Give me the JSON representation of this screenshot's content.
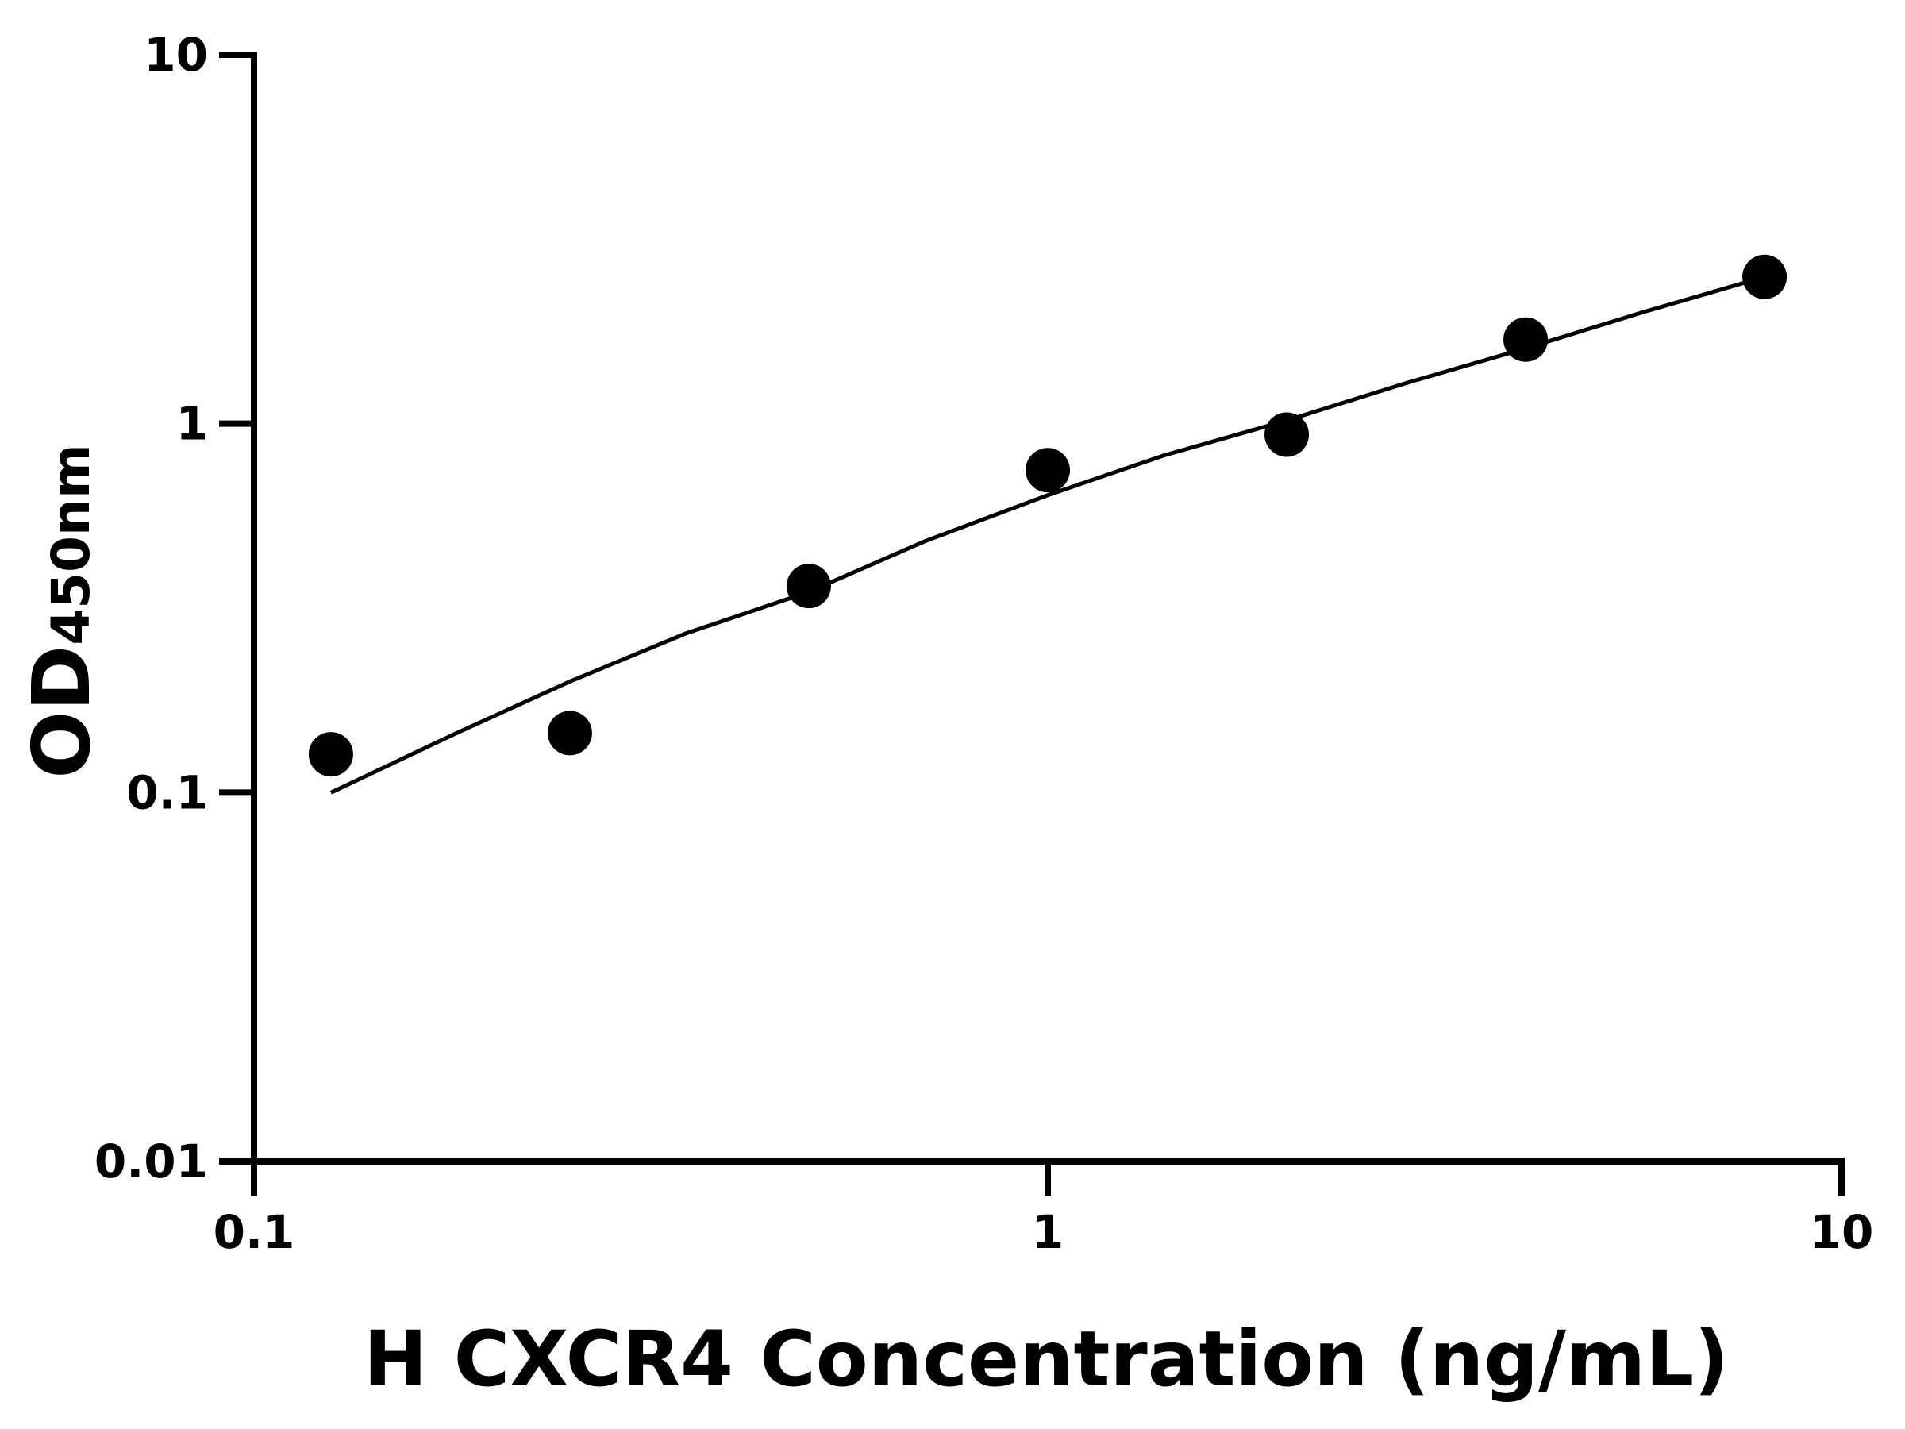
{
  "chart_data": {
    "type": "scatter",
    "title": "",
    "xlabel": "H CXCR4 Concentration (ng/mL)",
    "ylabel": {
      "main": "OD",
      "subscript": "450nm"
    },
    "x_scale": "log",
    "y_scale": "log",
    "xlim": [
      0.1,
      10
    ],
    "ylim": [
      0.01,
      10
    ],
    "x_ticks": [
      {
        "value": 0.1,
        "label": "0.1"
      },
      {
        "value": 1,
        "label": "1"
      },
      {
        "value": 10,
        "label": "10"
      }
    ],
    "y_ticks": [
      {
        "value": 0.01,
        "label": "0.01"
      },
      {
        "value": 0.1,
        "label": "0.1"
      },
      {
        "value": 1,
        "label": "1"
      },
      {
        "value": 10,
        "label": "10"
      }
    ],
    "grid": false,
    "series": [
      {
        "type": "scatter",
        "x": [
          0.125,
          0.25,
          0.5,
          1,
          2,
          4,
          8
        ],
        "y": [
          0.127,
          0.145,
          0.363,
          0.748,
          0.934,
          1.69,
          2.5
        ],
        "color": "#000000"
      },
      {
        "type": "line",
        "x": [
          0.125,
          0.18,
          0.25,
          0.35,
          0.5,
          0.7,
          1,
          1.4,
          2,
          2.8,
          4,
          5.6,
          8
        ],
        "y": [
          0.1,
          0.145,
          0.2,
          0.27,
          0.35,
          0.48,
          0.64,
          0.82,
          1.02,
          1.28,
          1.6,
          2.0,
          2.5
        ],
        "color": "#000000"
      }
    ]
  }
}
